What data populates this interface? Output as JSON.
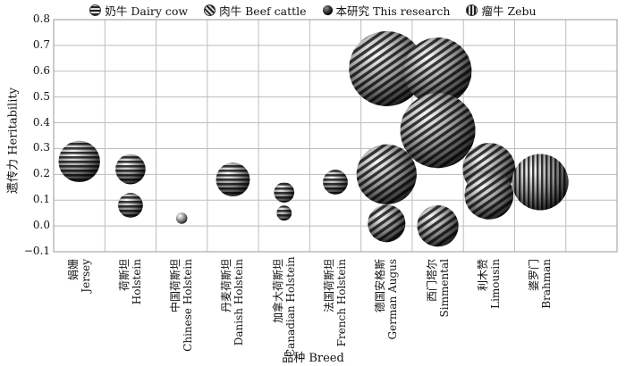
{
  "legend": {
    "items": [
      {
        "label": "奶牛 Dairy cow",
        "pattern": "horizontal"
      },
      {
        "label": "肉牛 Beef cattle",
        "pattern": "diagonal"
      },
      {
        "label": "本研究 This research",
        "pattern": "solid"
      },
      {
        "label": "瘤牛 Zebu",
        "pattern": "vertical"
      }
    ]
  },
  "chart_data": {
    "type": "bubble",
    "xlabel": "品种 Breed",
    "ylabel": "遗传力 Heritability",
    "ylim": [
      -0.1,
      0.8
    ],
    "yticks": [
      "0.8",
      "0.7",
      "0.6",
      "0.5",
      "0.4",
      "0.3",
      "0.2",
      "0.1",
      "0.0",
      "−0.1"
    ],
    "grid": true,
    "legend_position": "top",
    "categories": [
      {
        "cn": "娟姗",
        "en": "Jersey"
      },
      {
        "cn": "荷斯坦",
        "en": "Holstein"
      },
      {
        "cn": "中国荷斯坦",
        "en": "Chinese Holstein"
      },
      {
        "cn": "丹麦荷斯坦",
        "en": "Danish Holstein"
      },
      {
        "cn": "加拿大荷斯坦",
        "en": "Canadian Holstein"
      },
      {
        "cn": "法国荷斯坦",
        "en": "French Holstein"
      },
      {
        "cn": "德国安格斯",
        "en": "German Augus"
      },
      {
        "cn": "西门塔尔",
        "en": "Simmental"
      },
      {
        "cn": "利木赞",
        "en": "Limousin"
      },
      {
        "cn": "婆罗门",
        "en": "Brahman"
      }
    ],
    "points": [
      {
        "category": "Jersey",
        "y": 0.25,
        "size": 0.55,
        "group": "Dairy cow"
      },
      {
        "category": "Holstein",
        "y": 0.22,
        "size": 0.4,
        "group": "Dairy cow"
      },
      {
        "category": "Holstein",
        "y": 0.08,
        "size": 0.33,
        "group": "Dairy cow"
      },
      {
        "category": "Chinese Holstein",
        "y": 0.03,
        "size": 0.15,
        "group": "This research"
      },
      {
        "category": "Danish Holstein",
        "y": 0.18,
        "size": 0.45,
        "group": "Dairy cow"
      },
      {
        "category": "Canadian Holstein",
        "y": 0.13,
        "size": 0.27,
        "group": "Dairy cow"
      },
      {
        "category": "Canadian Holstein",
        "y": 0.05,
        "size": 0.2,
        "group": "Dairy cow"
      },
      {
        "category": "French Holstein",
        "y": 0.17,
        "size": 0.33,
        "group": "Dairy cow"
      },
      {
        "category": "German Augus",
        "y": 0.61,
        "size": 1.0,
        "group": "Beef cattle"
      },
      {
        "category": "German Augus",
        "y": 0.2,
        "size": 0.8,
        "group": "Beef cattle"
      },
      {
        "category": "German Augus",
        "y": 0.01,
        "size": 0.5,
        "group": "Beef cattle"
      },
      {
        "category": "Simmental",
        "y": 0.6,
        "size": 0.9,
        "group": "Beef cattle"
      },
      {
        "category": "Simmental",
        "y": 0.37,
        "size": 1.0,
        "group": "Beef cattle"
      },
      {
        "category": "Simmental",
        "y": 0.0,
        "size": 0.55,
        "group": "Beef cattle"
      },
      {
        "category": "Limousin",
        "y": 0.22,
        "size": 0.7,
        "group": "Beef cattle"
      },
      {
        "category": "Limousin",
        "y": 0.12,
        "size": 0.65,
        "group": "Beef cattle"
      },
      {
        "category": "Brahman",
        "y": 0.17,
        "size": 0.75,
        "group": "Zebu"
      }
    ]
  }
}
